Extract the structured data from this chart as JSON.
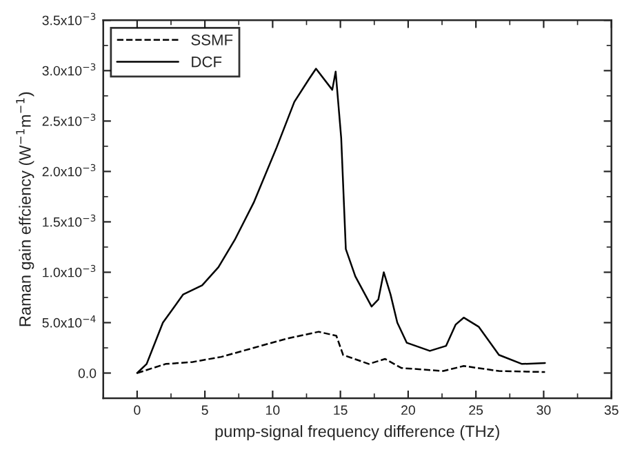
{
  "chart_data": {
    "type": "line",
    "xlabel": "pump-signal frequency difference (THz)",
    "ylabel": "Raman gain effciency (W$^{−1}$m$^{−1}$)",
    "xlim": [
      -2.5,
      35
    ],
    "xticks": [
      0,
      5,
      10,
      15,
      20,
      25,
      30,
      35
    ],
    "ylim": [
      -0.00025,
      0.0035
    ],
    "yticks": [
      {
        "value": 0,
        "label": "0.0"
      },
      {
        "value": 0.0005,
        "label": "5.0x10$^{−4}$"
      },
      {
        "value": 0.001,
        "label": "1.0x10$^{−3}$"
      },
      {
        "value": 0.0015,
        "label": "1.5x10$^{−3}$"
      },
      {
        "value": 0.002,
        "label": "2.0x10$^{−3}$"
      },
      {
        "value": 0.0025,
        "label": "2.5x10$^{−3}$"
      },
      {
        "value": 0.003,
        "label": "3.0x10$^{−3}$"
      },
      {
        "value": 0.0035,
        "label": "3.5x10$^{−3}$"
      }
    ],
    "legend": "top left",
    "grid": false,
    "series": [
      {
        "name": "SSMF",
        "color": "#000000",
        "line_style": "dashed",
        "x": [
          0,
          2.1,
          4.1,
          6.2,
          8.6,
          11,
          13.4,
          13.7,
          14.7,
          15.2,
          17.1,
          18.3,
          19.5,
          22.6,
          24.1,
          26.7,
          30.1
        ],
        "values": [
          0,
          9e-05,
          0.00011,
          0.00016,
          0.00025,
          0.00034,
          0.00041,
          0.0004,
          0.00037,
          0.00018,
          9e-05,
          0.00014,
          5e-05,
          2e-05,
          7e-05,
          2e-05,
          1e-05
        ]
      },
      {
        "name": "DCF",
        "color": "#000000",
        "line_style": "solid",
        "x": [
          0,
          0.7,
          1.9,
          3.4,
          4.8,
          6,
          7.2,
          8.6,
          10.3,
          11.6,
          12.7,
          13.2,
          14.4,
          14.65,
          15.06,
          15.4,
          16.1,
          17.3,
          17.8,
          18.2,
          18.7,
          19.2,
          19.9,
          21.6,
          22.8,
          23.5,
          24.1,
          25.2,
          26.7,
          28.4,
          30.1
        ],
        "values": [
          0,
          9e-05,
          0.0005,
          0.00078,
          0.00087,
          0.00105,
          0.00132,
          0.00169,
          0.00224,
          0.00269,
          0.00292,
          0.00302,
          0.00281,
          0.00299,
          0.00233,
          0.00123,
          0.00096,
          0.00066,
          0.00073,
          0.001,
          0.00078,
          0.0005,
          0.0003,
          0.00022,
          0.00027,
          0.00048,
          0.00055,
          0.00046,
          0.00018,
          9e-05,
          0.0001
        ]
      }
    ]
  }
}
